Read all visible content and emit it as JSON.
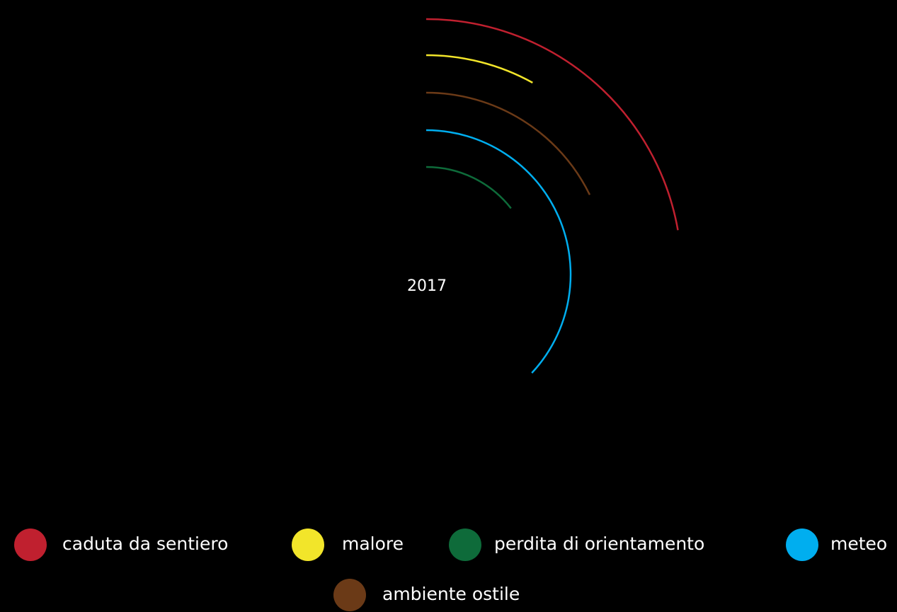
{
  "chart_data": {
    "type": "radial_bar",
    "title": "2017",
    "series": [
      {
        "name": "caduta da sentiero",
        "color": "#c0202f",
        "value": 80
      },
      {
        "name": "malore",
        "color": "#f2e52a",
        "value": 29
      },
      {
        "name": "ambiente ostile",
        "color": "#6b3a17",
        "value": 64
      },
      {
        "name": "meteo",
        "color": "#00aeef",
        "value": 133
      },
      {
        "name": "perdita di orientamento",
        "color": "#0e6b3a",
        "value": 52
      }
    ]
  }
}
